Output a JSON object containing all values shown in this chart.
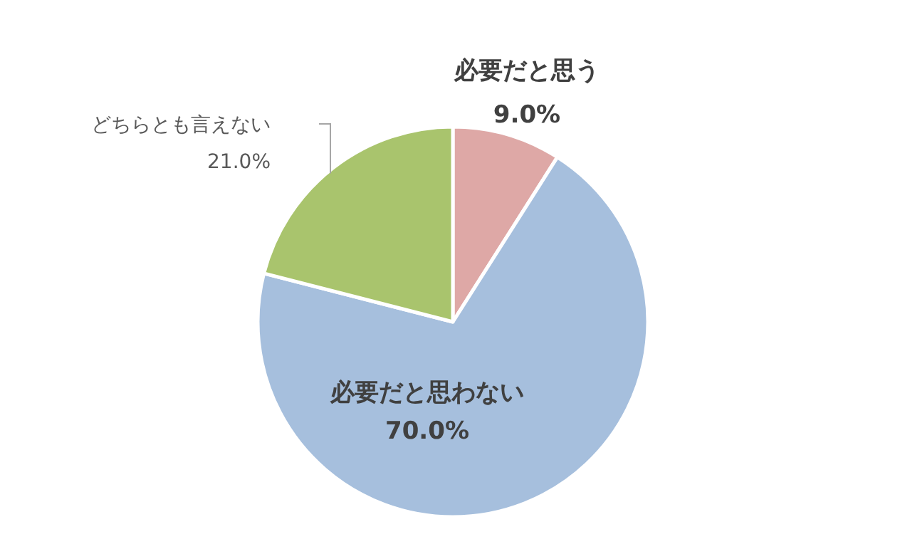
{
  "chart_data": {
    "type": "pie",
    "categories": [
      "必要だと思う",
      "必要だと思わない",
      "どちらとも言えない"
    ],
    "values": [
      9,
      70,
      21
    ],
    "colors": [
      "#dea8a6",
      "#a6bfdd",
      "#a9c46d"
    ],
    "value_labels": [
      "9.0%",
      "70.0%",
      "21.0%"
    ]
  }
}
